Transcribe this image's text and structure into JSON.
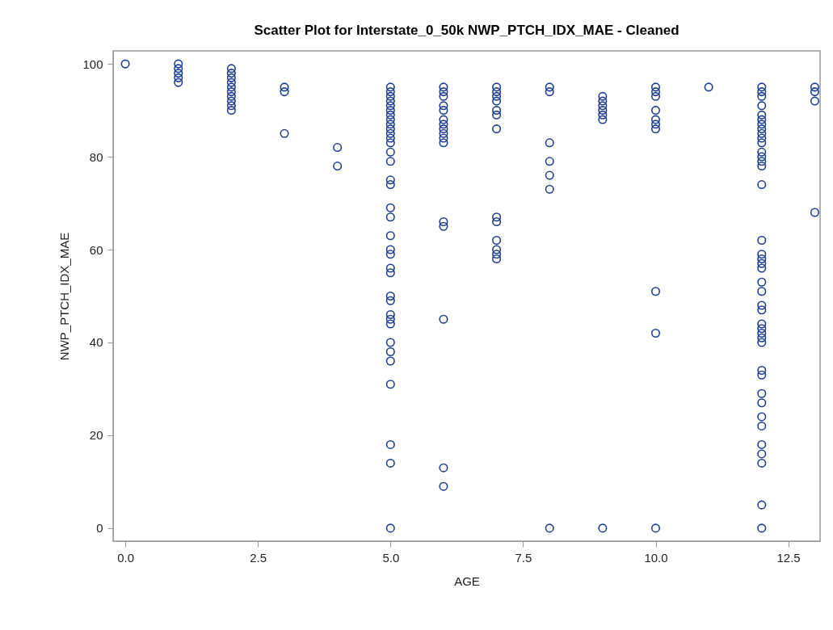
{
  "chart_data": {
    "type": "scatter",
    "title": "Scatter Plot for Interstate_0_50k NWP_PTCH_IDX_MAE - Cleaned",
    "xlabel": "AGE",
    "ylabel": "NWP_PTCH_IDX_MAE",
    "marker": "circle",
    "grid": false,
    "xlim": [
      -0.23,
      13.1
    ],
    "ylim": [
      -2.8,
      102.8
    ],
    "xticks": [
      {
        "value": 0,
        "label": "0.0"
      },
      {
        "value": 2.5,
        "label": "2.5"
      },
      {
        "value": 5,
        "label": "5.0"
      },
      {
        "value": 7.5,
        "label": "7.5"
      },
      {
        "value": 10,
        "label": "10.0"
      },
      {
        "value": 12.5,
        "label": "12.5"
      }
    ],
    "yticks": [
      0,
      20,
      40,
      60,
      80,
      100
    ],
    "series": [
      {
        "color": "#1f3d8f",
        "x": [
          0,
          1,
          1,
          1,
          1,
          1,
          2,
          2,
          2,
          2,
          2,
          2,
          2,
          2,
          2,
          2,
          3,
          3,
          3,
          4,
          4,
          5,
          5,
          5,
          5,
          5,
          5,
          5,
          5,
          5,
          5,
          5,
          5,
          5,
          5,
          5,
          5,
          5,
          5,
          5,
          5,
          5,
          5,
          5,
          5,
          5,
          5,
          5,
          5,
          5,
          5,
          5,
          5,
          5,
          5,
          5,
          5,
          6,
          6,
          6,
          6,
          6,
          6,
          6,
          6,
          6,
          6,
          6,
          6,
          6,
          6,
          6,
          6,
          7,
          7,
          7,
          7,
          7,
          7,
          7,
          7,
          7,
          7,
          7,
          7,
          7,
          8,
          8,
          8,
          8,
          8,
          8,
          8,
          9,
          9,
          9,
          9,
          9,
          9,
          9,
          10,
          10,
          10,
          10,
          10,
          10,
          10,
          10,
          10,
          10,
          11,
          12,
          12,
          12,
          12,
          12,
          12,
          12,
          12,
          12,
          12,
          12,
          12,
          12,
          12,
          12,
          12,
          12,
          12,
          12,
          12,
          12,
          12,
          12,
          12,
          12,
          12,
          12,
          12,
          12,
          12,
          12,
          12,
          12,
          12,
          12,
          12,
          12,
          12,
          12,
          12,
          12,
          13,
          13,
          13,
          13
        ],
        "values": [
          100,
          100,
          99,
          98,
          97,
          96,
          99,
          98,
          97,
          96,
          95,
          94,
          93,
          92,
          91,
          90,
          95,
          94,
          85,
          82,
          78,
          95,
          94,
          93,
          92,
          91,
          90,
          89,
          88,
          87,
          86,
          85,
          84,
          83,
          81,
          79,
          75,
          74,
          69,
          67,
          63,
          60,
          59,
          56,
          55,
          50,
          49,
          46,
          45,
          44,
          40,
          38,
          36,
          31,
          18,
          14,
          0,
          95,
          94,
          93,
          91,
          90,
          88,
          87,
          86,
          85,
          84,
          83,
          66,
          65,
          45,
          13,
          9,
          95,
          94,
          93,
          92,
          90,
          89,
          86,
          67,
          66,
          62,
          60,
          59,
          58,
          95,
          94,
          83,
          79,
          76,
          73,
          0,
          93,
          92,
          91,
          90,
          89,
          88,
          0,
          95,
          94,
          93,
          90,
          88,
          87,
          86,
          51,
          42,
          0,
          95,
          95,
          94,
          93,
          91,
          89,
          88,
          87,
          86,
          85,
          84,
          83,
          81,
          80,
          79,
          78,
          74,
          62,
          59,
          58,
          57,
          56,
          53,
          51,
          48,
          47,
          44,
          43,
          42,
          41,
          40,
          34,
          33,
          29,
          27,
          24,
          22,
          18,
          16,
          14,
          5,
          0,
          95,
          94,
          92,
          68
        ]
      }
    ]
  }
}
